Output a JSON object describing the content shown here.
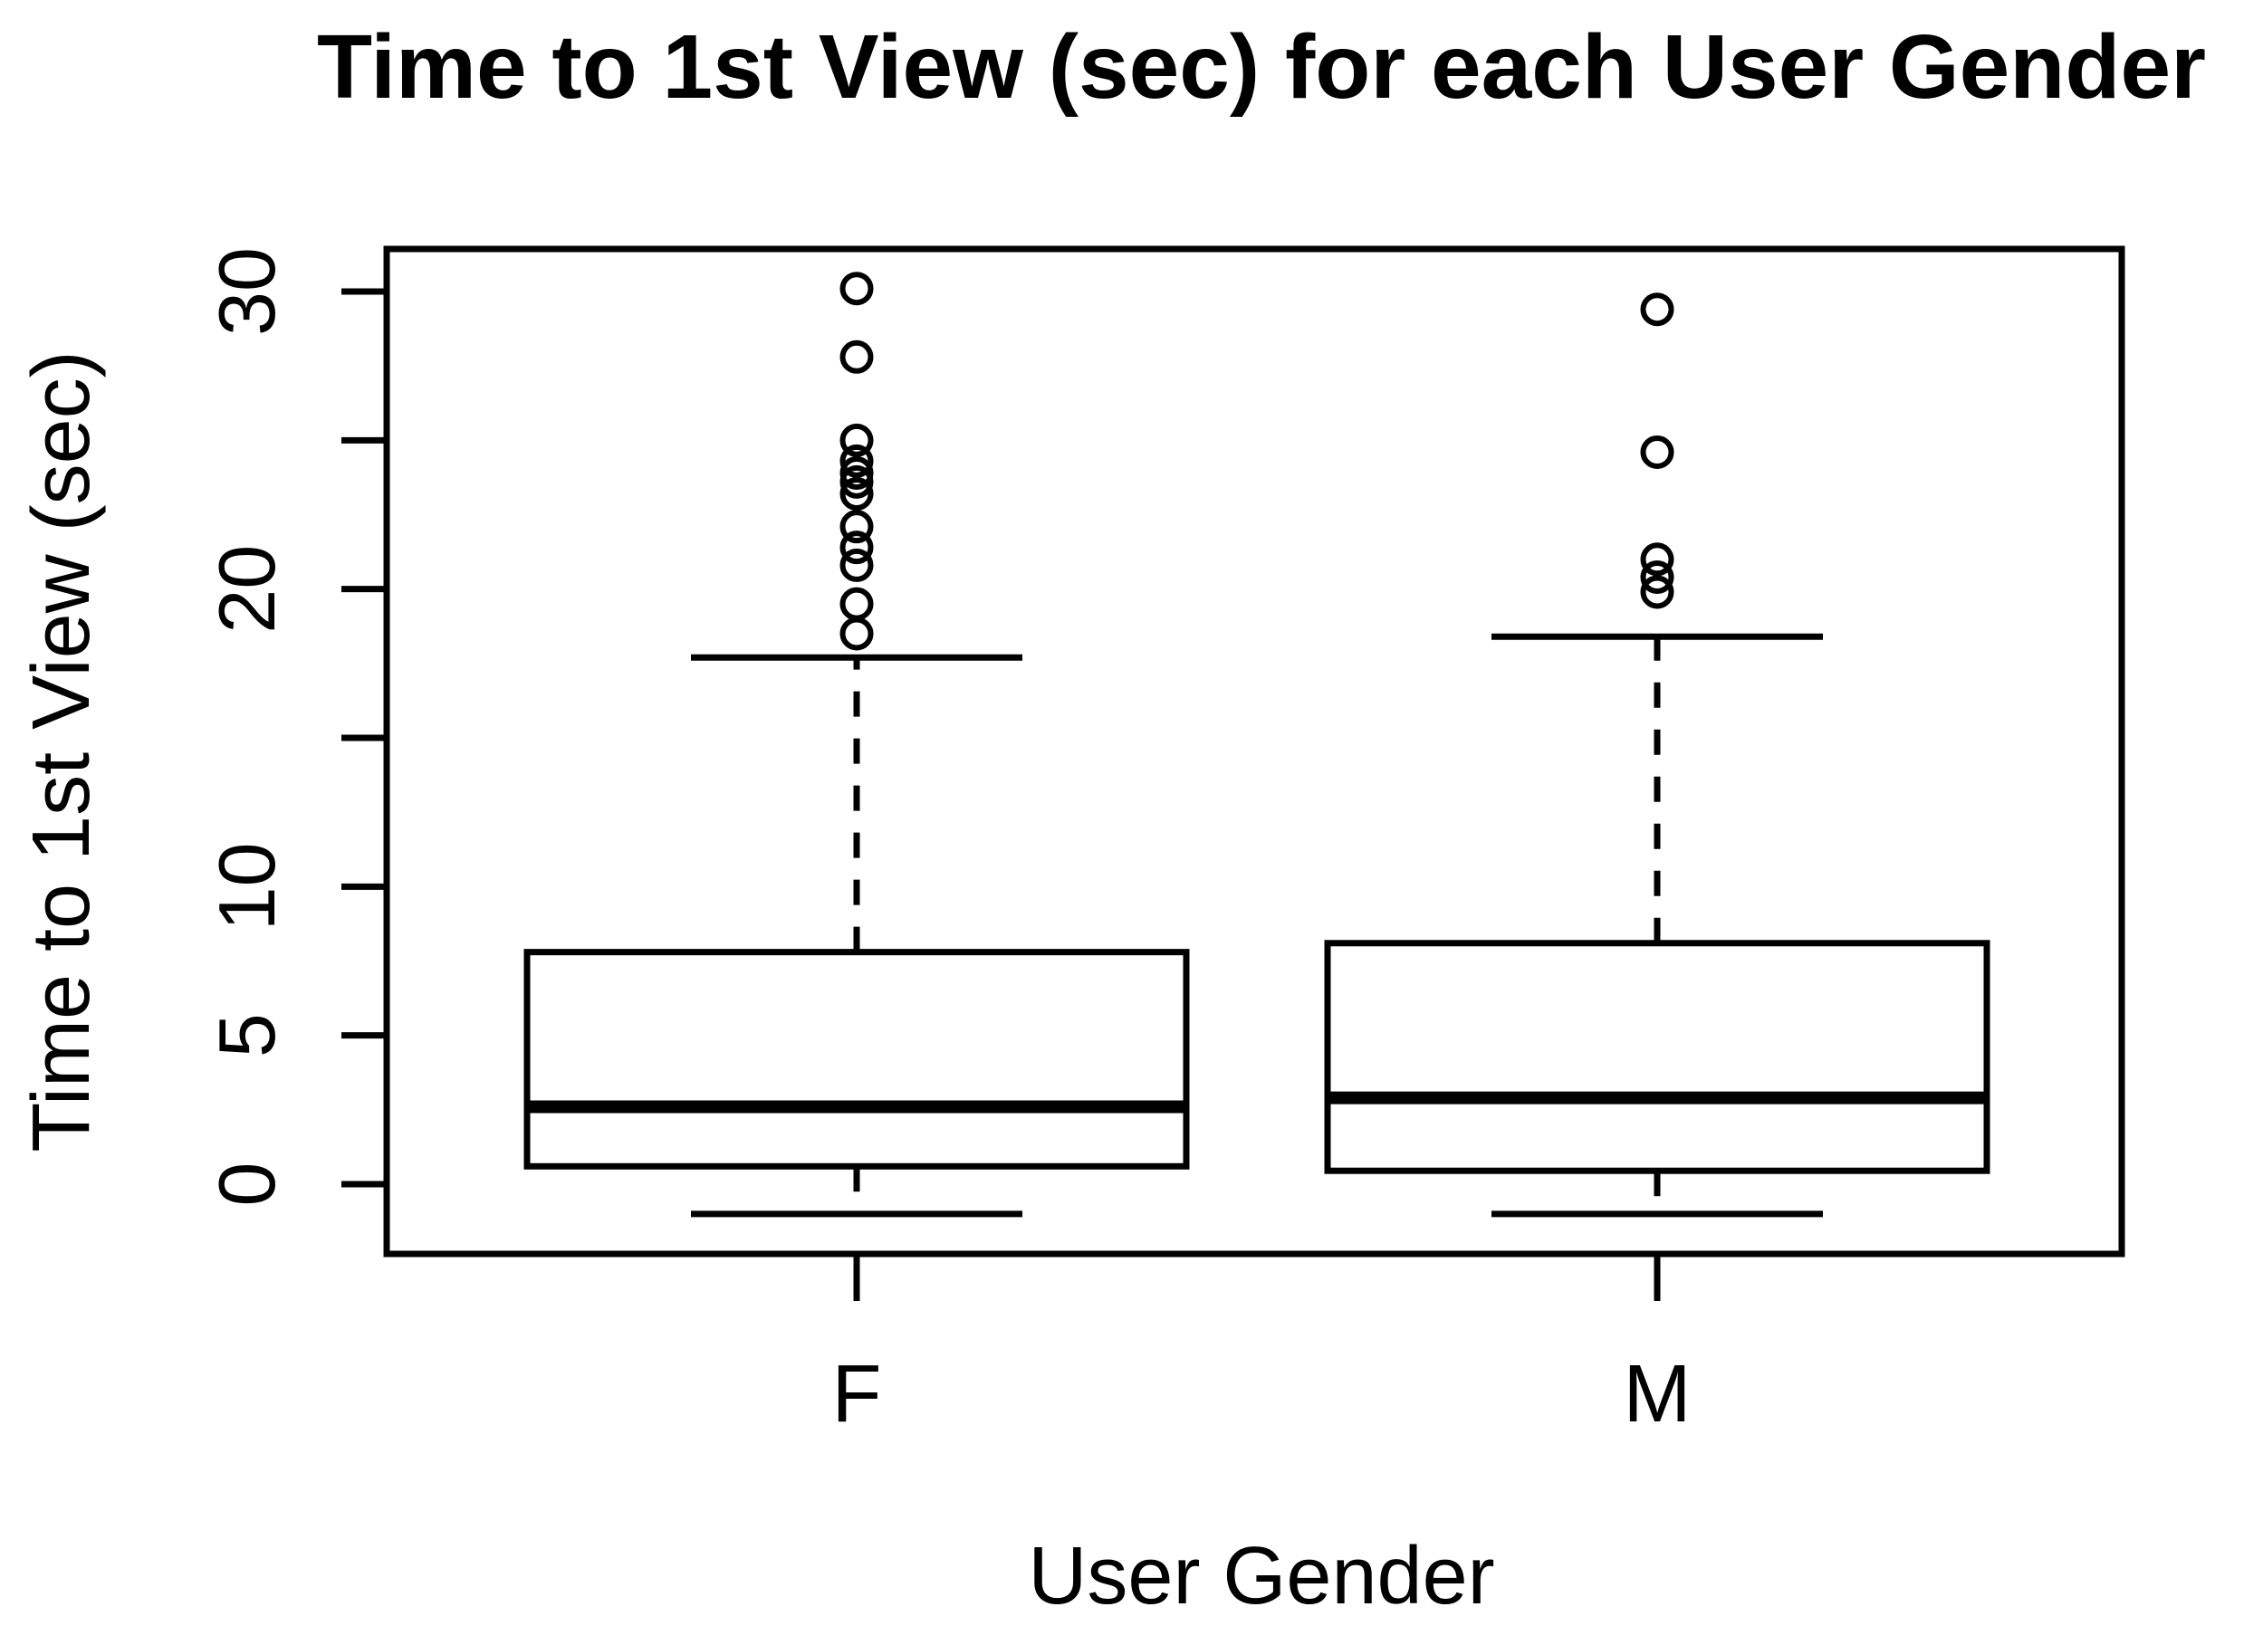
{
  "figure": {
    "background_color": "#ffffff",
    "line_color": "#000000"
  },
  "chart_data": {
    "type": "boxplot",
    "title": "Time to 1st View (sec) for each User Gender",
    "xlabel": "User Gender",
    "ylabel": "Time to 1st View (sec)",
    "categories": [
      "F",
      "M"
    ],
    "y_axis": {
      "ticks": [
        0,
        5,
        10,
        15,
        20,
        25,
        30
      ],
      "labeled_ticks": [
        0,
        5,
        10,
        20,
        30
      ],
      "ylim": [
        -2.3,
        31.4
      ],
      "grid": false
    },
    "legend": null,
    "series": [
      {
        "name": "F",
        "lower_whisker": -1.0,
        "q1": 0.6,
        "median": 2.6,
        "q3": 7.8,
        "upper_whisker": 17.7,
        "outliers": [
          18.5,
          19.5,
          20.8,
          21.4,
          22.1,
          23.2,
          23.6,
          23.9,
          24.3,
          25.0,
          27.8,
          30.1
        ]
      },
      {
        "name": "M",
        "lower_whisker": -1.0,
        "q1": 0.45,
        "median": 2.9,
        "q3": 8.1,
        "upper_whisker": 18.4,
        "outliers": [
          19.9,
          20.4,
          21.0,
          24.6,
          29.4
        ]
      }
    ]
  }
}
